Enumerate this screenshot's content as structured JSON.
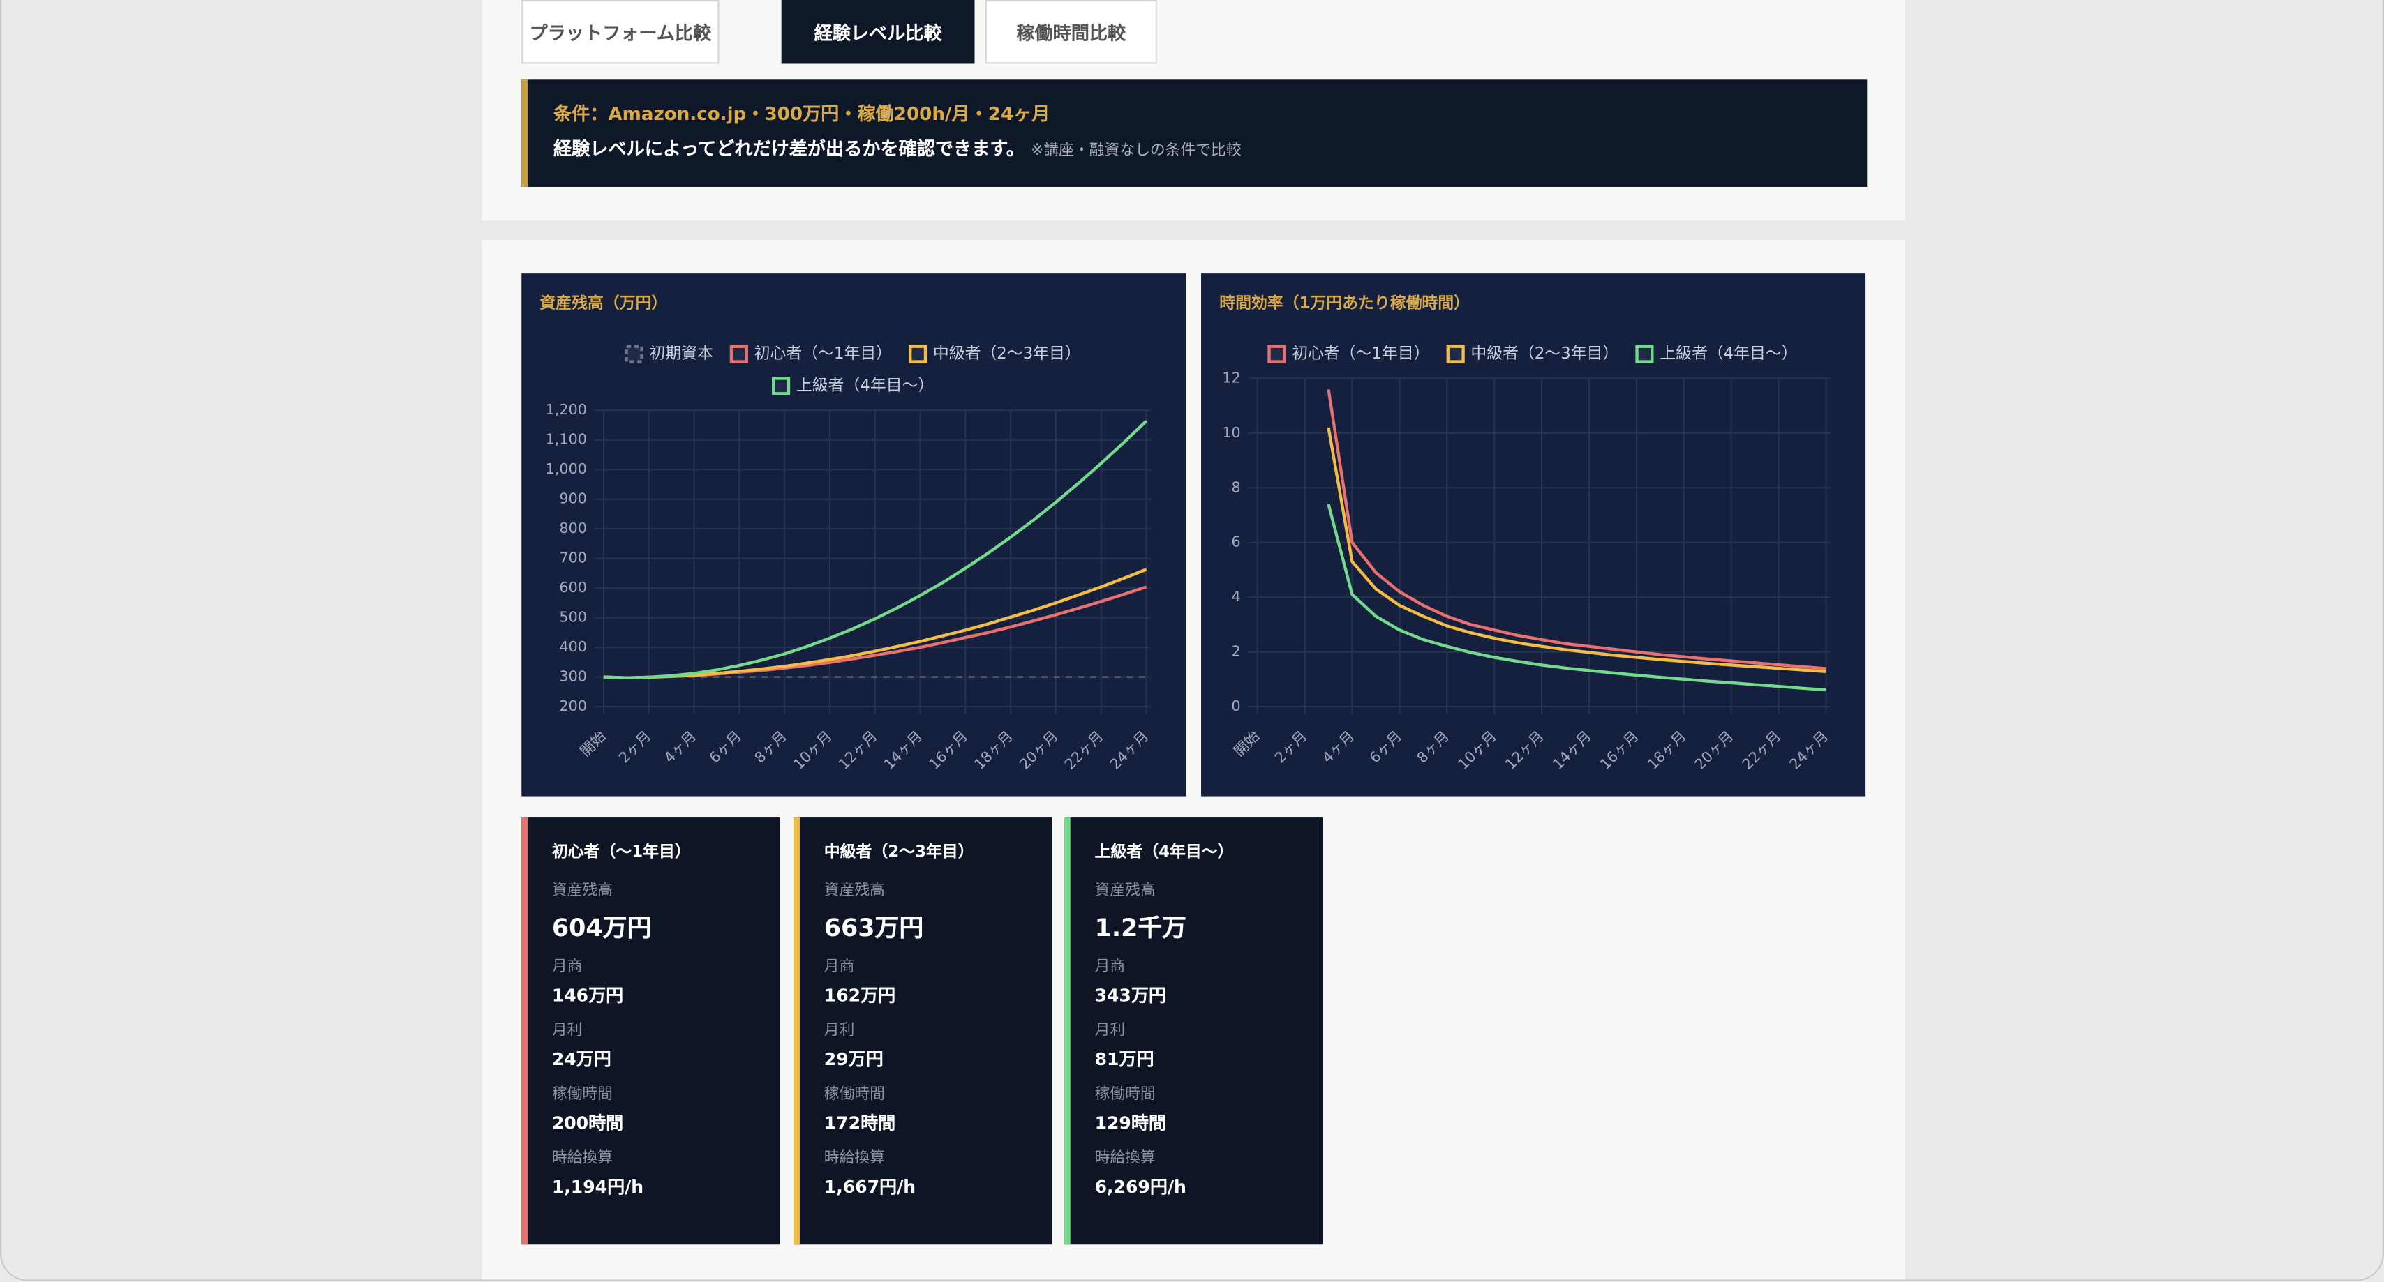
{
  "tabs": [
    "プラットフォーム比較",
    "経験レベル比較",
    "稼働時間比較"
  ],
  "banner": {
    "condition": "条件：Amazon.co.jp・300万円・稼働200h/月・24ヶ月",
    "text": "経験レベルによってどれだけ差が出るかを確認できます。",
    "note": "※講座・融資なしの条件で比較"
  },
  "chart_data": [
    {
      "type": "line",
      "title": "資産残高（万円）",
      "categories": [
        "開始",
        null,
        "2ヶ月",
        null,
        "4ヶ月",
        null,
        "6ヶ月",
        null,
        "8ヶ月",
        null,
        "10ヶ月",
        null,
        "12ヶ月",
        null,
        "14ヶ月",
        null,
        "16ヶ月",
        null,
        "18ヶ月",
        null,
        "20ヶ月",
        null,
        "22ヶ月",
        null,
        "24ヶ月"
      ],
      "series": [
        {
          "name": "初期資本",
          "color": "#6b7489",
          "dash": true,
          "values": [
            300,
            300,
            300,
            300,
            300,
            300,
            300,
            300,
            300,
            300,
            300,
            300,
            300,
            300,
            300,
            300,
            300,
            300,
            300,
            300,
            300,
            300,
            300,
            300,
            300
          ]
        },
        {
          "name": "初心者（〜1年目）",
          "color": "#e8706f",
          "values": [
            300,
            297,
            299,
            302,
            305,
            310,
            316,
            322,
            330,
            339,
            349,
            361,
            373,
            386,
            400,
            416,
            433,
            450,
            469,
            489,
            510,
            532,
            555,
            579,
            604
          ]
        },
        {
          "name": "中級者（2〜3年目）",
          "color": "#f3bd45",
          "values": [
            300,
            297,
            299,
            302,
            306,
            312,
            319,
            327,
            336,
            347,
            359,
            372,
            387,
            403,
            420,
            439,
            458,
            479,
            502,
            525,
            550,
            577,
            604,
            633,
            663
          ]
        },
        {
          "name": "上級者（4年目〜）",
          "color": "#74d98a",
          "values": [
            300,
            297,
            299,
            304,
            312,
            324,
            339,
            357,
            378,
            403,
            431,
            462,
            496,
            534,
            575,
            619,
            667,
            718,
            772,
            829,
            890,
            954,
            1021,
            1091,
            1164
          ]
        }
      ],
      "ylim": [
        200,
        1200
      ],
      "yticks": [
        200,
        300,
        400,
        500,
        600,
        700,
        800,
        900,
        {
          "value": 1000,
          "label": "1,000"
        },
        {
          "value": 1100,
          "label": "1,100"
        },
        {
          "value": 1200,
          "label": "1,200"
        }
      ],
      "grid": true,
      "legend": "top"
    },
    {
      "type": "line",
      "title": "時間効率（1万円あたり稼働時間）",
      "categories": [
        "開始",
        null,
        "2ヶ月",
        null,
        "4ヶ月",
        null,
        "6ヶ月",
        null,
        "8ヶ月",
        null,
        "10ヶ月",
        null,
        "12ヶ月",
        null,
        "14ヶ月",
        null,
        "16ヶ月",
        null,
        "18ヶ月",
        null,
        "20ヶ月",
        null,
        "22ヶ月",
        null,
        "24ヶ月"
      ],
      "series": [
        {
          "name": "初心者（〜1年目）",
          "color": "#e8706f",
          "values": [
            null,
            null,
            null,
            11.6,
            6.0,
            4.9,
            4.2,
            3.7,
            3.3,
            3.0,
            2.8,
            2.6,
            2.45,
            2.3,
            2.2,
            2.1,
            2.0,
            1.9,
            1.82,
            1.74,
            1.67,
            1.6,
            1.53,
            1.46,
            1.39
          ]
        },
        {
          "name": "中級者（2〜3年目）",
          "color": "#f3bd45",
          "values": [
            null,
            null,
            null,
            10.2,
            5.3,
            4.3,
            3.7,
            3.3,
            2.95,
            2.7,
            2.5,
            2.33,
            2.2,
            2.08,
            1.98,
            1.88,
            1.8,
            1.72,
            1.65,
            1.58,
            1.52,
            1.46,
            1.4,
            1.34,
            1.28
          ]
        },
        {
          "name": "上級者（4年目〜）",
          "color": "#74d98a",
          "values": [
            null,
            null,
            null,
            7.4,
            4.1,
            3.3,
            2.8,
            2.45,
            2.2,
            1.98,
            1.8,
            1.65,
            1.52,
            1.41,
            1.32,
            1.23,
            1.15,
            1.07,
            1.0,
            0.93,
            0.87,
            0.8,
            0.74,
            0.67,
            0.61
          ]
        }
      ],
      "ylim": [
        0,
        12
      ],
      "yticks": [
        0,
        2,
        4,
        6,
        8,
        10,
        12
      ],
      "grid": true,
      "legend": "top"
    }
  ],
  "cards": [
    {
      "title": "初心者（〜1年目）",
      "color": "#e8706f",
      "items": [
        {
          "label": "資産残高",
          "value": "604万円"
        },
        {
          "label": "月商",
          "value": "146万円"
        },
        {
          "label": "月利",
          "value": "24万円"
        },
        {
          "label": "稼働時間",
          "value": "200時間"
        },
        {
          "label": "時給換算",
          "value": "1,194円/h"
        }
      ]
    },
    {
      "title": "中級者（2〜3年目）",
      "color": "#f3bd45",
      "items": [
        {
          "label": "資産残高",
          "value": "663万円"
        },
        {
          "label": "月商",
          "value": "162万円"
        },
        {
          "label": "月利",
          "value": "29万円"
        },
        {
          "label": "稼働時間",
          "value": "172時間"
        },
        {
          "label": "時給換算",
          "value": "1,667円/h"
        }
      ]
    },
    {
      "title": "上級者（4年目〜）",
      "color": "#74d98a",
      "items": [
        {
          "label": "資産残高",
          "value": "1.2千万"
        },
        {
          "label": "月商",
          "value": "343万円"
        },
        {
          "label": "月利",
          "value": "81万円"
        },
        {
          "label": "稼働時間",
          "value": "129時間"
        },
        {
          "label": "時給換算",
          "value": "6,269円/h"
        }
      ]
    }
  ]
}
